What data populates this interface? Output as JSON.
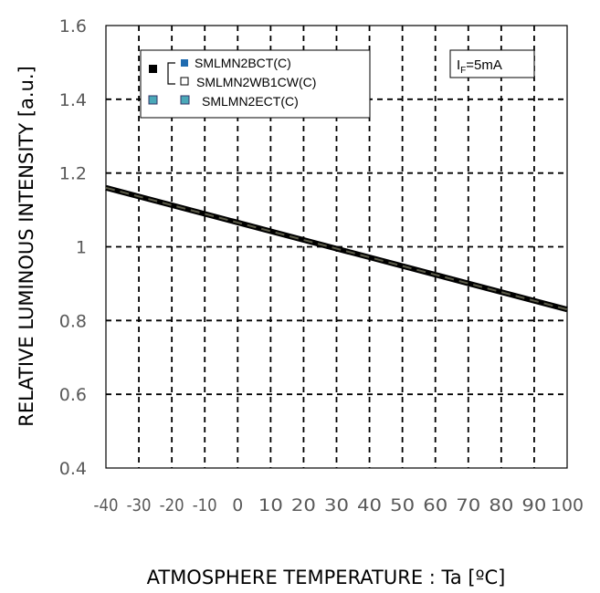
{
  "chart_data": {
    "type": "line",
    "title": "",
    "xlabel": "ATMOSPHERE TEMPERATURE : Ta [ºC]",
    "ylabel": "RELATIVE LUMINOUS INTENSITY [a.u.]",
    "xlim": [
      -40,
      100
    ],
    "ylim": [
      0.4,
      1.6
    ],
    "x_ticks": [
      -40,
      -30,
      -20,
      -10,
      0,
      10,
      20,
      30,
      40,
      50,
      60,
      70,
      80,
      90,
      100
    ],
    "x_tick_labels": [
      "-40",
      "-30",
      "-20",
      "-10",
      "0",
      "10",
      "20",
      "30",
      "40",
      "50",
      "60",
      "70",
      "80",
      "90",
      "100"
    ],
    "y_ticks": [
      0.4,
      0.6,
      0.8,
      1.0,
      1.2,
      1.4,
      1.6
    ],
    "y_tick_labels": [
      "0.4",
      "0.6",
      "0.8",
      "1",
      "1.2",
      "1.4",
      "1.6"
    ],
    "grid": true,
    "legend_position": "top-left",
    "series": [
      {
        "name": "SMLMN2BCT(C)",
        "color": "#000000",
        "marker_color": "#1f6bb0",
        "x": [
          -40,
          100
        ],
        "y": [
          1.16,
          0.83
        ]
      },
      {
        "name": "SMLMN2WB1CW(C)",
        "color": "#000000",
        "marker_color": "#ffffff",
        "x": [
          -40,
          100
        ],
        "y": [
          1.16,
          0.83
        ]
      },
      {
        "name": "SMLMN2ECT(C)",
        "color": "#5c5c4a",
        "marker_color": "#4aa8b8",
        "x": [
          -40,
          100
        ],
        "y": [
          1.16,
          0.83
        ]
      }
    ],
    "annotation": {
      "main": "I",
      "sub": "F",
      "rest": "=5mA"
    }
  }
}
